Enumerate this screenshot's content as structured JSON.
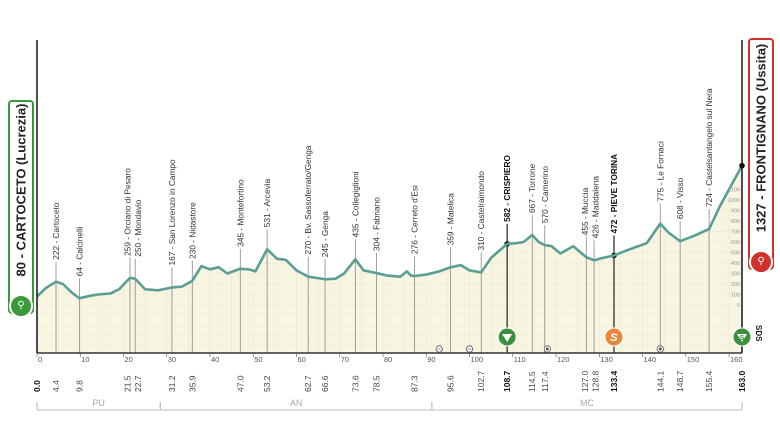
{
  "chart_data": {
    "type": "area",
    "title": "",
    "xlabel": "",
    "ylabel": "",
    "xlim": [
      0,
      163
    ],
    "ylim": [
      0,
      1100
    ],
    "x_ticks": [
      0,
      10,
      20,
      30,
      40,
      50,
      60,
      70,
      80,
      90,
      100,
      110,
      120,
      130,
      140,
      150,
      160
    ],
    "y_ticks": [
      0,
      100,
      200,
      300,
      400,
      500,
      600,
      700,
      800,
      900,
      1000,
      1100
    ],
    "start": {
      "km": "0.0",
      "elevation": 80,
      "label": "80 - CARTOCETO (Lucrezia)"
    },
    "finish": {
      "km": "163.0",
      "elevation": 1327,
      "label": "1327 - FRONTIGNANO (Ussita)"
    },
    "waypoints": [
      {
        "km": 4.4,
        "km_label": "4.4",
        "elev": 222,
        "label": "222 - Cartoceto"
      },
      {
        "km": 9.8,
        "km_label": "9.8",
        "elev": 64,
        "label": "64 - Calcinelli"
      },
      {
        "km": 21.5,
        "km_label": "21.5",
        "elev": 259,
        "label": "259 - Orciano di Pesaro"
      },
      {
        "km": 22.7,
        "km_label": "22.7",
        "elev": 250,
        "label": "250 - Mondavio"
      },
      {
        "km": 31.2,
        "km_label": "31.2",
        "elev": 167,
        "label": "167 - San Lorenzo in Campo"
      },
      {
        "km": 35.9,
        "km_label": "35.9",
        "elev": 230,
        "label": "230 - Nidastore"
      },
      {
        "km": 47.0,
        "km_label": "47.0",
        "elev": 345,
        "label": "345 - Montefortino"
      },
      {
        "km": 53.2,
        "km_label": "53.2",
        "elev": 531,
        "label": "531 - Arcevia"
      },
      {
        "km": 62.7,
        "km_label": "62.7",
        "elev": 270,
        "label": "270 - Bv. Sassoferrato/Genga"
      },
      {
        "km": 66.6,
        "km_label": "66.6",
        "elev": 245,
        "label": "245 - Genga"
      },
      {
        "km": 73.6,
        "km_label": "73.6",
        "elev": 435,
        "label": "435 - Collegiglioni"
      },
      {
        "km": 78.5,
        "km_label": "78.5",
        "elev": 304,
        "label": "304 - Fabriano"
      },
      {
        "km": 87.3,
        "km_label": "87.3",
        "elev": 276,
        "label": "276 - Cerreto d'Esi"
      },
      {
        "km": 95.6,
        "km_label": "95.6",
        "elev": 359,
        "label": "359 - Matelica"
      },
      {
        "km": 102.7,
        "km_label": "102.7",
        "elev": 310,
        "label": "310 - Castelraimondo"
      },
      {
        "km": 108.7,
        "km_label": "108.7",
        "elev": 582,
        "label": "582 - CRISPIERO",
        "bold": true,
        "marker": "climb"
      },
      {
        "km": 114.5,
        "km_label": "114.5",
        "elev": 667,
        "label": "667 - Torrone"
      },
      {
        "km": 117.4,
        "km_label": "117.4",
        "elev": 570,
        "label": "570 - Camerino"
      },
      {
        "km": 127.0,
        "km_label": "127.0",
        "elev": 455,
        "label": "455 - Muccia"
      },
      {
        "km": 128.8,
        "km_label": "128.8",
        "elev": 426,
        "label": "426 - Maddalena"
      },
      {
        "km": 133.4,
        "km_label": "133.4",
        "elev": 472,
        "label": "472 - PIEVE TORINA",
        "bold": true,
        "marker": "sprint"
      },
      {
        "km": 144.1,
        "km_label": "144.1",
        "elev": 775,
        "label": "775 - Le Fornaci"
      },
      {
        "km": 148.7,
        "km_label": "148.7",
        "elev": 608,
        "label": "608 - Visso"
      },
      {
        "km": 155.4,
        "km_label": "155.4",
        "elev": 724,
        "label": "724 - Castelsantangelo sul Nera"
      }
    ],
    "profile": [
      [
        0,
        80
      ],
      [
        2,
        160
      ],
      [
        4.4,
        222
      ],
      [
        6,
        200
      ],
      [
        8,
        120
      ],
      [
        9.8,
        64
      ],
      [
        12,
        85
      ],
      [
        14,
        100
      ],
      [
        17,
        110
      ],
      [
        19,
        150
      ],
      [
        21.5,
        259
      ],
      [
        22.7,
        250
      ],
      [
        25,
        150
      ],
      [
        28,
        140
      ],
      [
        31.2,
        167
      ],
      [
        33.5,
        175
      ],
      [
        35.9,
        230
      ],
      [
        38,
        370
      ],
      [
        40,
        340
      ],
      [
        42,
        360
      ],
      [
        44,
        300
      ],
      [
        47,
        345
      ],
      [
        49,
        340
      ],
      [
        50.5,
        320
      ],
      [
        53.2,
        531
      ],
      [
        55.5,
        440
      ],
      [
        57.5,
        430
      ],
      [
        60,
        330
      ],
      [
        62.7,
        270
      ],
      [
        66.6,
        245
      ],
      [
        69,
        250
      ],
      [
        71,
        300
      ],
      [
        73.6,
        435
      ],
      [
        75.5,
        330
      ],
      [
        78.5,
        304
      ],
      [
        81,
        280
      ],
      [
        84,
        270
      ],
      [
        85.5,
        320
      ],
      [
        86.5,
        280
      ],
      [
        87.3,
        276
      ],
      [
        90,
        290
      ],
      [
        93,
        320
      ],
      [
        95.6,
        359
      ],
      [
        98,
        380
      ],
      [
        100,
        330
      ],
      [
        102.7,
        310
      ],
      [
        105,
        450
      ],
      [
        108.7,
        582
      ],
      [
        111,
        590
      ],
      [
        112.5,
        600
      ],
      [
        114.5,
        667
      ],
      [
        116,
        600
      ],
      [
        117.4,
        570
      ],
      [
        119,
        560
      ],
      [
        121,
        490
      ],
      [
        124,
        560
      ],
      [
        127,
        455
      ],
      [
        128.8,
        426
      ],
      [
        131,
        450
      ],
      [
        133.4,
        472
      ],
      [
        137,
        530
      ],
      [
        141,
        590
      ],
      [
        144.1,
        775
      ],
      [
        146,
        690
      ],
      [
        148.7,
        608
      ],
      [
        152,
        660
      ],
      [
        155.4,
        724
      ],
      [
        158,
        950
      ],
      [
        160,
        1100
      ],
      [
        163,
        1327
      ]
    ],
    "markers": {
      "climb_icon": "green-triangle",
      "sprint_icon": "orange-s",
      "finish_icon": "green-triangle-s",
      "feed_zone_kms": [
        93,
        100
      ],
      "intermediate_icon_kms": [
        118,
        144.1
      ]
    },
    "finish_marker_text": "SDS",
    "regions": [
      {
        "name": "PU",
        "from": 0,
        "to": 28.5
      },
      {
        "name": "AN",
        "from": 28.5,
        "to": 91.3
      },
      {
        "name": "MC",
        "from": 91.3,
        "to": 163
      }
    ],
    "colors": {
      "profile_line": "#5a9e96",
      "fill": "#f8f6e3",
      "start": "#3a9a3a",
      "finish": "#d0312d",
      "sprint": "#e8873a",
      "climb": "#3c8f3c"
    },
    "grid": true
  }
}
